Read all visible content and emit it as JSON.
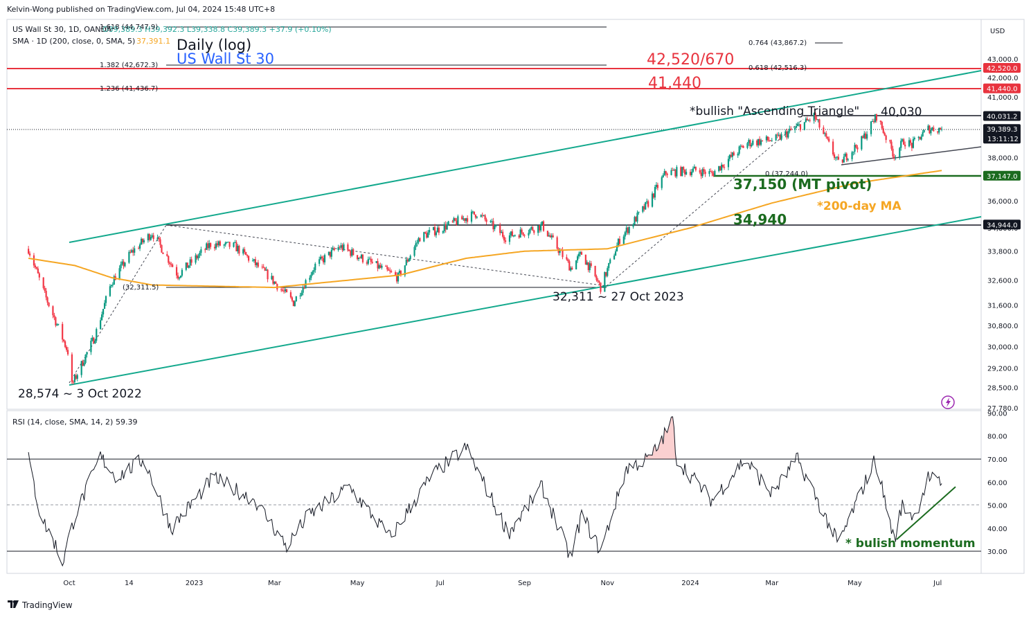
{
  "header": {
    "published": "Kelvin-Wong published on TradingView.com, Jul 04, 2024 15:48 UTC+8",
    "symbol_line": "US Wall St 30, 1D, OANDA",
    "ohlc": "O39,389.3 H39,392.3 L39,338.8 C39,389.3 +37.9 (+0.10%)",
    "sma_line": "SMA · 1D (200, close, 0, SMA, 5)",
    "sma_value": "37,391.1",
    "rsi_line": "RSI (14, close, SMA, 14, 2)",
    "rsi_value": "59.39",
    "currency": "USD",
    "footer_brand": "TradingView"
  },
  "colors": {
    "up": "#26a69a",
    "down": "#ef5350",
    "up_body": "#089981",
    "down_body": "#f23645",
    "channel": "#12a88c",
    "sma": "#f5a623",
    "red_level": "#e8333e",
    "green_level": "#1b6b1f",
    "black_level": "#131722",
    "blue_title": "#2962ff"
  },
  "chart_data": [
    {
      "type": "candlestick",
      "title": "US Wall St 30",
      "subtitle": "Daily (log)",
      "x_tick_labels": [
        "Oct",
        "14",
        "2023",
        "Mar",
        "May",
        "Jul",
        "Sep",
        "Nov",
        "2024",
        "Mar",
        "May",
        "Jul"
      ],
      "y_tick_labels": [
        "43,000.0",
        "42,000.0",
        "41,000.0",
        "40,000.0",
        "39,000.0",
        "38,000.0",
        "36,000.0",
        "34,800.0",
        "33,800.0",
        "32,600.0",
        "31,600.0",
        "30,800.0",
        "30,000.0",
        "29,200.0",
        "28,500.0",
        "27,780.0"
      ],
      "y_ticks": [
        43000,
        42000,
        41000,
        40000,
        39000,
        38000,
        36000,
        34800,
        33800,
        32600,
        31600,
        30800,
        30000,
        29200,
        28500,
        27780
      ],
      "ylim": [
        27750,
        44900
      ],
      "scale": "log",
      "last_price": 39389.3,
      "countdown": "13:11:12",
      "keypoints": [
        {
          "date": "2022-09-01",
          "close": 33900
        },
        {
          "date": "2022-09-13",
          "close": 32000
        },
        {
          "date": "2022-09-30",
          "close": 29800
        },
        {
          "date": "2022-10-03",
          "close": 28574
        },
        {
          "date": "2022-10-20",
          "close": 30400
        },
        {
          "date": "2022-11-01",
          "close": 32500
        },
        {
          "date": "2022-11-15",
          "close": 33700
        },
        {
          "date": "2022-12-01",
          "close": 34589
        },
        {
          "date": "2022-12-20",
          "close": 32800
        },
        {
          "date": "2023-01-13",
          "close": 34100
        },
        {
          "date": "2023-01-31",
          "close": 34000
        },
        {
          "date": "2023-02-24",
          "close": 32800
        },
        {
          "date": "2023-03-15",
          "close": 31700
        },
        {
          "date": "2023-03-31",
          "close": 33200
        },
        {
          "date": "2023-04-18",
          "close": 34000
        },
        {
          "date": "2023-05-31",
          "close": 32700
        },
        {
          "date": "2023-06-16",
          "close": 34400
        },
        {
          "date": "2023-07-28",
          "close": 35450
        },
        {
          "date": "2023-08-18",
          "close": 34400
        },
        {
          "date": "2023-09-14",
          "close": 34900
        },
        {
          "date": "2023-10-05",
          "close": 33100
        },
        {
          "date": "2023-10-13",
          "close": 33700
        },
        {
          "date": "2023-10-27",
          "close": 32311
        },
        {
          "date": "2023-11-10",
          "close": 34300
        },
        {
          "date": "2023-12-01",
          "close": 35900
        },
        {
          "date": "2023-12-14",
          "close": 37300
        },
        {
          "date": "2024-01-05",
          "close": 37400
        },
        {
          "date": "2024-01-17",
          "close": 37244
        },
        {
          "date": "2024-02-12",
          "close": 38700
        },
        {
          "date": "2024-03-05",
          "close": 38900
        },
        {
          "date": "2024-03-28",
          "close": 39800
        },
        {
          "date": "2024-04-01",
          "close": 40030
        },
        {
          "date": "2024-04-19",
          "close": 37700
        },
        {
          "date": "2024-05-06",
          "close": 38800
        },
        {
          "date": "2024-05-17",
          "close": 40030
        },
        {
          "date": "2024-05-30",
          "close": 38100
        },
        {
          "date": "2024-06-06",
          "close": 38800
        },
        {
          "date": "2024-06-12",
          "close": 38600
        },
        {
          "date": "2024-06-24",
          "close": 39400
        },
        {
          "date": "2024-07-04",
          "close": 39389.3
        }
      ],
      "sma200": [
        {
          "date": "2022-09-01",
          "value": 33500
        },
        {
          "date": "2022-10-05",
          "value": 33200
        },
        {
          "date": "2022-11-01",
          "value": 32700
        },
        {
          "date": "2022-12-01",
          "value": 32400
        },
        {
          "date": "2023-03-01",
          "value": 32300
        },
        {
          "date": "2023-06-01",
          "value": 32800
        },
        {
          "date": "2023-07-20",
          "value": 33500
        },
        {
          "date": "2023-09-01",
          "value": 33800
        },
        {
          "date": "2023-11-01",
          "value": 33900
        },
        {
          "date": "2024-01-01",
          "value": 34800
        },
        {
          "date": "2024-03-01",
          "value": 35900
        },
        {
          "date": "2024-05-01",
          "value": 36800
        },
        {
          "date": "2024-07-04",
          "value": 37391.1
        }
      ],
      "price_labels": [
        {
          "label": "42,520.0",
          "value": 42520,
          "color": "#e8333e"
        },
        {
          "label": "41,440.0",
          "value": 41440,
          "color": "#e8333e"
        },
        {
          "label": "40,031.2",
          "value": 40031.2,
          "color": "#131722"
        },
        {
          "label": "39,389.3",
          "value": 39389.3,
          "color": "#131722"
        },
        {
          "label": "37,147.0",
          "value": 37147,
          "color": "#1b6b1f"
        },
        {
          "label": "34,944.0",
          "value": 34944,
          "color": "#131722"
        }
      ],
      "fib_levels": [
        {
          "label": "1.618 (44,747.9)",
          "value": 44747.9
        },
        {
          "label": "1.382 (42,672.3)",
          "value": 42672.3
        },
        {
          "label": "1.236 (41,436.7)",
          "value": 41436.7
        },
        {
          "label": "0.764 (43,867.2)",
          "value": 43867.2
        },
        {
          "label": "0.618 (42,516.3)",
          "value": 42516.3
        },
        {
          "label": "(32,311.5)",
          "value": 32311.5
        },
        {
          "label": "0 (37,244.0)",
          "value": 37244
        }
      ],
      "annotations": {
        "a_4252": "42,520/670",
        "a_41440": "41,440",
        "a_tri": "*bullish \"Ascending Triangle\"",
        "a_40030": "40,030",
        "a_pivot": "37,150 (MT pivot)",
        "a_ma": "*200-day MA",
        "a_34940": "34,940",
        "a_low23": "32,311 ~ 27 Oct 2023",
        "a_low22": "28,574 ~ 3 Oct 2022"
      }
    },
    {
      "type": "line",
      "title": "RSI (14, close, SMA, 14, 2)",
      "y_tick_labels": [
        "90.00",
        "80.00",
        "70.00",
        "60.00",
        "50.00",
        "40.00",
        "30.00"
      ],
      "y_ticks": [
        90,
        80,
        70,
        60,
        50,
        40,
        30
      ],
      "ylim": [
        20.5,
        91.5
      ],
      "bands": [
        30,
        50,
        70
      ],
      "last_value": 59.39,
      "annotation": "* bulish momentum",
      "keypoints": [
        {
          "date": "2022-09-01",
          "value": 70
        },
        {
          "date": "2022-09-10",
          "value": 45
        },
        {
          "date": "2022-09-20",
          "value": 34
        },
        {
          "date": "2022-09-26",
          "value": 25
        },
        {
          "date": "2022-10-05",
          "value": 45
        },
        {
          "date": "2022-10-24",
          "value": 71
        },
        {
          "date": "2022-11-05",
          "value": 62
        },
        {
          "date": "2022-11-25",
          "value": 70
        },
        {
          "date": "2022-12-15",
          "value": 40
        },
        {
          "date": "2023-01-15",
          "value": 62
        },
        {
          "date": "2023-02-15",
          "value": 52
        },
        {
          "date": "2023-03-10",
          "value": 32
        },
        {
          "date": "2023-03-25",
          "value": 45
        },
        {
          "date": "2023-04-25",
          "value": 58
        },
        {
          "date": "2023-05-25",
          "value": 36
        },
        {
          "date": "2023-06-25",
          "value": 63
        },
        {
          "date": "2023-07-20",
          "value": 75
        },
        {
          "date": "2023-08-20",
          "value": 38
        },
        {
          "date": "2023-09-14",
          "value": 58
        },
        {
          "date": "2023-10-05",
          "value": 27
        },
        {
          "date": "2023-10-13",
          "value": 46
        },
        {
          "date": "2023-10-27",
          "value": 30
        },
        {
          "date": "2023-11-15",
          "value": 66
        },
        {
          "date": "2023-12-01",
          "value": 70
        },
        {
          "date": "2023-12-08",
          "value": 75
        },
        {
          "date": "2023-12-19",
          "value": 87
        },
        {
          "date": "2023-12-22",
          "value": 70
        },
        {
          "date": "2024-01-17",
          "value": 52
        },
        {
          "date": "2024-02-10",
          "value": 70
        },
        {
          "date": "2024-03-01",
          "value": 55
        },
        {
          "date": "2024-03-20",
          "value": 70
        },
        {
          "date": "2024-04-19",
          "value": 33
        },
        {
          "date": "2024-05-16",
          "value": 70
        },
        {
          "date": "2024-05-30",
          "value": 35
        },
        {
          "date": "2024-06-05",
          "value": 50
        },
        {
          "date": "2024-06-14",
          "value": 45
        },
        {
          "date": "2024-06-24",
          "value": 62
        },
        {
          "date": "2024-07-04",
          "value": 59.39
        }
      ]
    }
  ]
}
